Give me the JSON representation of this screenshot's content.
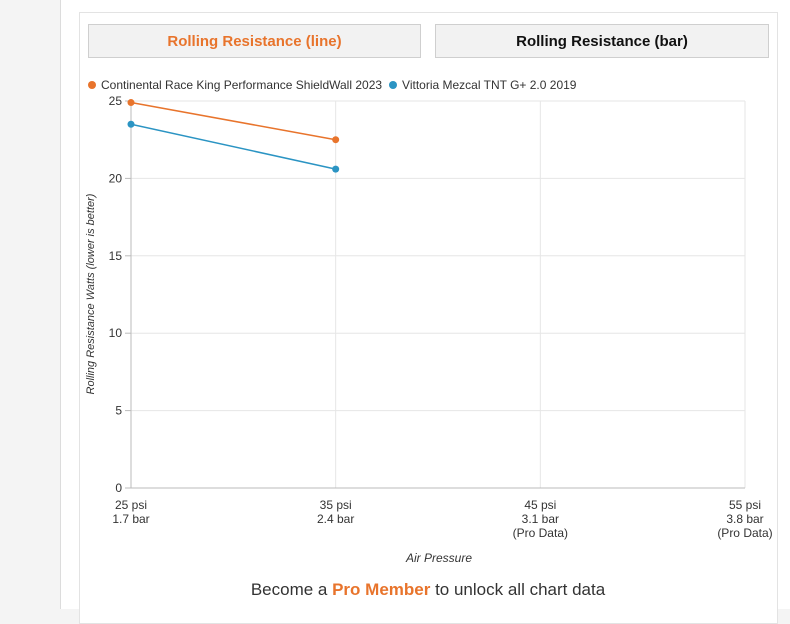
{
  "tabs": {
    "line_label": "Rolling Resistance (line)",
    "bar_label": "Rolling Resistance (bar)"
  },
  "promo": {
    "prefix": "Become a ",
    "link": "Pro Member",
    "suffix": " to unlock all chart data"
  },
  "colors": {
    "accent": "#e8742c",
    "series_orange": "#e8742c",
    "series_blue": "#2b94c3",
    "grid": "#e6e6e6"
  },
  "chart_data": {
    "type": "line",
    "title": "",
    "xlabel": "Air Pressure",
    "ylabel": "Rolling Resistance Watts (lower is better)",
    "ylim": [
      0,
      25
    ],
    "yticks": [
      0,
      5,
      10,
      15,
      20,
      25
    ],
    "categories": [
      [
        "25 psi",
        "1.7 bar"
      ],
      [
        "35 psi",
        "2.4 bar"
      ],
      [
        "45 psi",
        "3.1 bar",
        "(Pro Data)"
      ],
      [
        "55 psi",
        "3.8 bar",
        "(Pro Data)"
      ]
    ],
    "grid": true,
    "legend_position": "top-left",
    "series": [
      {
        "name": "Continental Race King Performance ShieldWall 2023",
        "color": "#e8742c",
        "values": [
          24.9,
          22.5,
          null,
          null
        ]
      },
      {
        "name": "Vittoria Mezcal TNT G+ 2.0 2019",
        "color": "#2b94c3",
        "values": [
          23.5,
          20.6,
          null,
          null
        ]
      }
    ]
  }
}
